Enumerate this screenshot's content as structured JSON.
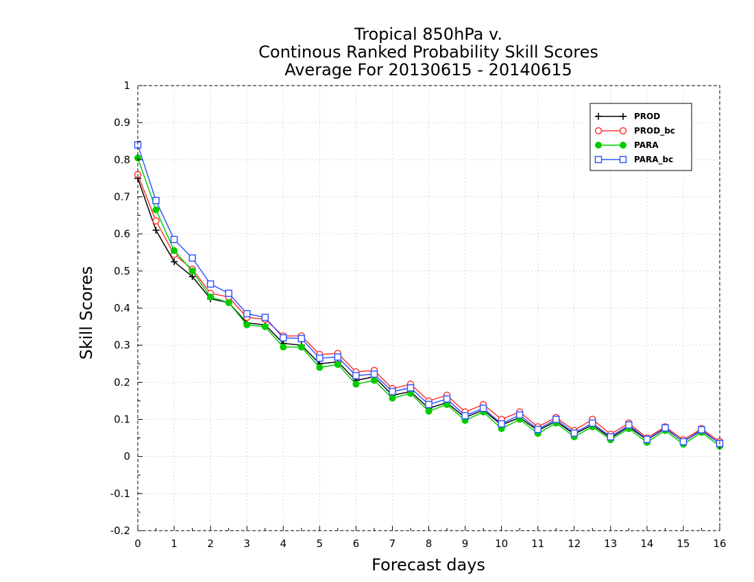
{
  "chart_data": {
    "type": "line",
    "title_lines": [
      "Tropical 850hPa v.",
      "Continous Ranked Probability Skill Scores",
      "Average For 20130615 - 20140615"
    ],
    "xlabel": "Forecast days",
    "ylabel": "Skill Scores",
    "xlim": [
      0,
      16
    ],
    "ylim": [
      -0.2,
      1
    ],
    "x_ticks": [
      0,
      1,
      2,
      3,
      4,
      5,
      6,
      7,
      8,
      9,
      10,
      11,
      12,
      13,
      14,
      15,
      16
    ],
    "y_ticks": [
      -0.2,
      -0.1,
      0,
      0.1,
      0.2,
      0.3,
      0.4,
      0.5,
      0.6,
      0.7,
      0.8,
      0.9,
      1
    ],
    "y_tick_labels": [
      "-0.2",
      "-0.1",
      "0",
      "0.1",
      "0.2",
      "0.3",
      "0.4",
      "0.5",
      "0.6",
      "0.7",
      "0.8",
      "0.9",
      "1"
    ],
    "grid": true,
    "legend_position": "top-right",
    "x": [
      0,
      0.5,
      1,
      1.5,
      2,
      2.5,
      3,
      3.5,
      4,
      4.5,
      5,
      5.5,
      6,
      6.5,
      7,
      7.5,
      8,
      8.5,
      9,
      9.5,
      10,
      10.5,
      11,
      11.5,
      12,
      12.5,
      13,
      13.5,
      14,
      14.5,
      15,
      15.5,
      16
    ],
    "series": [
      {
        "name": "PROD",
        "color": "#000000",
        "marker": "plus",
        "values": [
          0.75,
          0.61,
          0.525,
          0.485,
          0.425,
          0.415,
          0.36,
          0.355,
          0.305,
          0.3,
          0.25,
          0.255,
          0.205,
          0.215,
          0.165,
          0.175,
          0.13,
          0.145,
          0.105,
          0.125,
          0.085,
          0.105,
          0.07,
          0.095,
          0.06,
          0.085,
          0.05,
          0.08,
          0.045,
          0.075,
          0.04,
          0.07,
          0.035
        ]
      },
      {
        "name": "PROD_bc",
        "color": "#ff3333",
        "marker": "circle-open",
        "values": [
          0.76,
          0.635,
          0.545,
          0.505,
          0.44,
          0.43,
          0.375,
          0.37,
          0.325,
          0.325,
          0.275,
          0.278,
          0.228,
          0.232,
          0.183,
          0.195,
          0.15,
          0.165,
          0.12,
          0.14,
          0.1,
          0.12,
          0.08,
          0.105,
          0.07,
          0.1,
          0.06,
          0.09,
          0.05,
          0.08,
          0.045,
          0.075,
          0.04
        ]
      },
      {
        "name": "PARA",
        "color": "#00cc00",
        "marker": "circle-filled",
        "values": [
          0.805,
          0.665,
          0.555,
          0.5,
          0.43,
          0.415,
          0.355,
          0.35,
          0.295,
          0.295,
          0.24,
          0.248,
          0.195,
          0.205,
          0.157,
          0.17,
          0.122,
          0.14,
          0.097,
          0.12,
          0.075,
          0.1,
          0.062,
          0.09,
          0.053,
          0.08,
          0.045,
          0.075,
          0.038,
          0.07,
          0.033,
          0.065,
          0.028
        ]
      },
      {
        "name": "PARA_bc",
        "color": "#3355ff",
        "marker": "square-open",
        "values": [
          0.84,
          0.69,
          0.585,
          0.535,
          0.465,
          0.44,
          0.385,
          0.375,
          0.32,
          0.318,
          0.265,
          0.268,
          0.218,
          0.222,
          0.175,
          0.185,
          0.14,
          0.155,
          0.11,
          0.13,
          0.088,
          0.112,
          0.073,
          0.1,
          0.063,
          0.09,
          0.053,
          0.085,
          0.046,
          0.077,
          0.04,
          0.072,
          0.035
        ]
      }
    ]
  }
}
